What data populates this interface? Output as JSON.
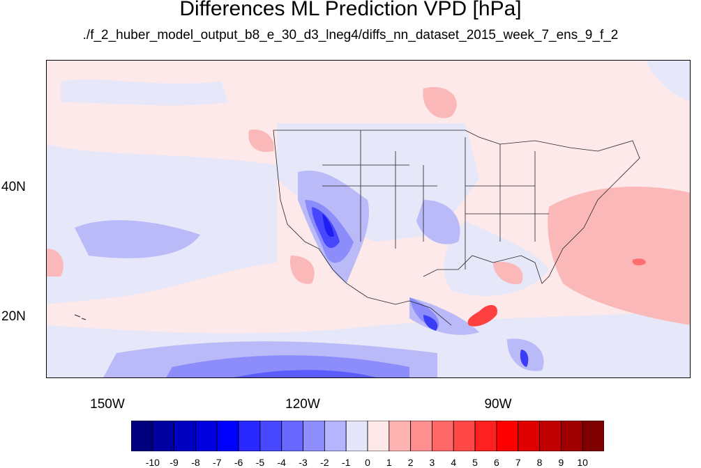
{
  "title": "Differences ML Prediction VPD [hPa]",
  "subtitle": "./f_2_huber_model_output_b8_e_30_d3_lneg4/diffs_nn_dataset_2015_week_7_ens_9_f_2",
  "lat_labels": [
    "40N",
    "20N"
  ],
  "lon_labels": [
    "150W",
    "120W",
    "90W"
  ],
  "colorbar": {
    "colors": [
      "#00007f",
      "#0000a0",
      "#0000c0",
      "#0000df",
      "#0000ff",
      "#2828ff",
      "#4848ff",
      "#6868ff",
      "#8e8eff",
      "#b4b4ff",
      "#e6e6fa",
      "#fde7e7",
      "#ffb4b4",
      "#ff8e8e",
      "#ff6868",
      "#ff4848",
      "#ff2020",
      "#ff0000",
      "#df0000",
      "#c00000",
      "#a00000",
      "#7f0000"
    ],
    "labels": [
      "-10",
      "-9",
      "-8",
      "-7",
      "-6",
      "-5",
      "-4",
      "-3",
      "-2",
      "-1",
      "0",
      "1",
      "2",
      "3",
      "4",
      "5",
      "6",
      "7",
      "8",
      "9",
      "10"
    ]
  }
}
